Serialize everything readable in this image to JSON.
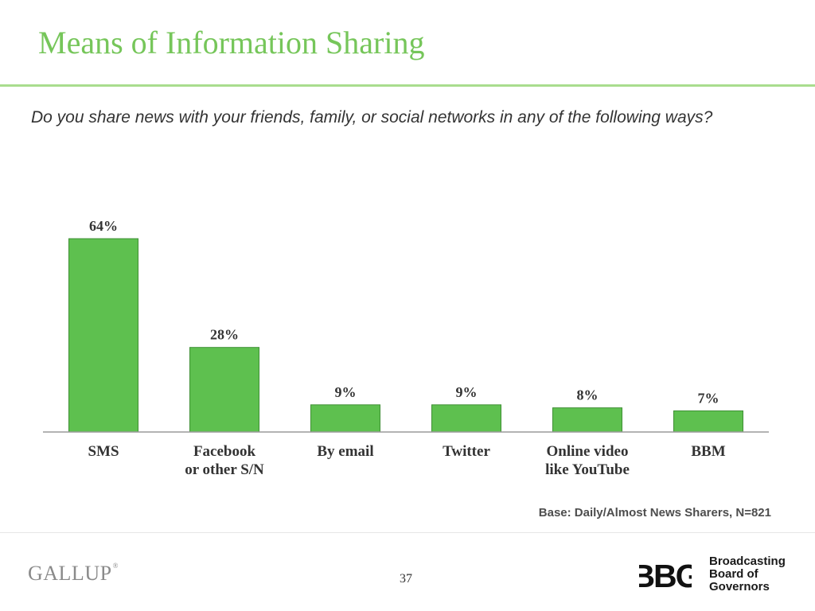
{
  "slide": {
    "title": "Means of Information Sharing",
    "question": "Do you share news with your friends, family, or social networks in any of the following ways?",
    "footnote": "Base: Daily/Almost News Sharers, N=821",
    "page_number": "37"
  },
  "footer": {
    "gallup_logo_text": "GALLUP",
    "gallup_trademark": "®",
    "bbg_logo_text": "BBG",
    "bbg_name_lines": [
      "Broadcasting",
      "Board of",
      "Governors"
    ]
  },
  "colors": {
    "title": "#76c65a",
    "bar_fill": "#5ec04f",
    "bar_stroke": "#3f8f34",
    "rule": "#a9dd8e"
  },
  "chart_data": {
    "type": "bar",
    "categories": [
      [
        "SMS"
      ],
      [
        "Facebook",
        "or other S/N"
      ],
      [
        "By email"
      ],
      [
        "Twitter"
      ],
      [
        "Online video",
        "like YouTube"
      ],
      [
        "BBM"
      ]
    ],
    "values": [
      64,
      28,
      9,
      9,
      8,
      7
    ],
    "data_labels": [
      "64%",
      "28%",
      "9%",
      "9%",
      "8%",
      "7%"
    ],
    "ylim": [
      0,
      64
    ],
    "grid": false,
    "legend": "none",
    "xlabel": "",
    "ylabel": ""
  }
}
